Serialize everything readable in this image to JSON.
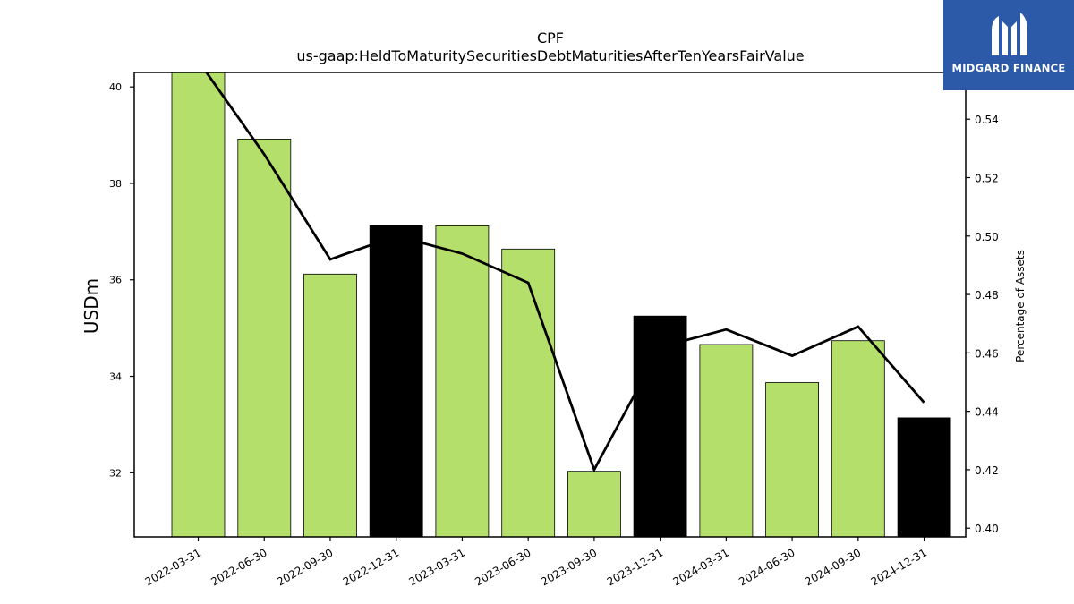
{
  "brand": {
    "name": "MIDGARD FINANCE",
    "bg_color": "#2d5aa8"
  },
  "chart_data": {
    "type": "bar",
    "title": "CPF",
    "subtitle": "us-gaap:HeldToMaturitySecuritiesDebtMaturitiesAfterTenYearsFairValue",
    "ylabel": "USDm",
    "y2label": "Percentage of Assets",
    "categories": [
      "2022-03-31",
      "2022-06-30",
      "2022-09-30",
      "2022-12-31",
      "2023-03-31",
      "2023-06-30",
      "2023-09-30",
      "2023-12-31",
      "2024-03-31",
      "2024-06-30",
      "2024-09-30",
      "2024-12-31"
    ],
    "series": [
      {
        "type": "bar",
        "values": [
          40.3,
          38.92,
          36.12,
          37.12,
          37.12,
          36.64,
          32.03,
          35.25,
          34.66,
          33.87,
          34.74,
          33.14
        ],
        "colors": [
          "#b3df6a",
          "#b3df6a",
          "#b3df6a",
          "#000000",
          "#b3df6a",
          "#b3df6a",
          "#b3df6a",
          "#000000",
          "#b3df6a",
          "#b3df6a",
          "#b3df6a",
          "#000000"
        ]
      },
      {
        "type": "line",
        "axis": "right",
        "color": "#000000",
        "values": [
          0.56,
          0.528,
          0.492,
          0.5,
          0.494,
          0.484,
          0.42,
          0.462,
          0.468,
          0.459,
          0.469,
          0.443
        ]
      }
    ],
    "ylim": [
      30.67,
      40.3
    ],
    "yticks": [
      32,
      34,
      36,
      38,
      40
    ],
    "y2lim": [
      0.397,
      0.556
    ],
    "y2ticks": [
      0.4,
      0.42,
      0.44,
      0.46,
      0.48,
      0.5,
      0.52,
      0.54
    ],
    "grid": false
  }
}
